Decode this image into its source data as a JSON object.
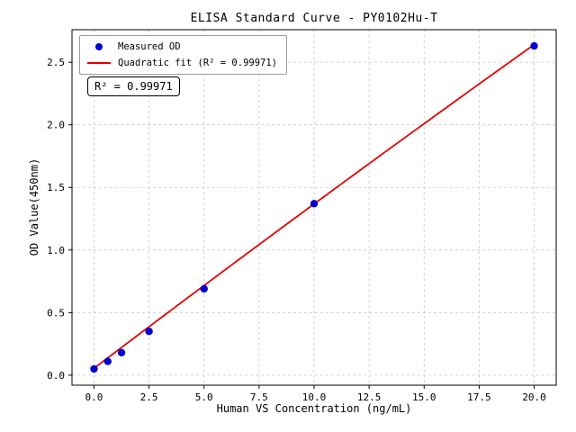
{
  "chart_data": {
    "type": "scatter",
    "title": "ELISA Standard Curve - PY0102Hu-T",
    "xlabel": "Human VS Concentration (ng/mL)",
    "ylabel": "OD Value(450nm)",
    "xlim": [
      -1,
      21
    ],
    "ylim": [
      -0.08,
      2.76
    ],
    "xticks": [
      0,
      2.5,
      5,
      7.5,
      10,
      12.5,
      15,
      17.5,
      20
    ],
    "yticks": [
      0,
      0.5,
      1,
      1.5,
      2,
      2.5
    ],
    "grid": true,
    "grid_style": "dashed",
    "legend_position": "upper-left",
    "annotation": "R² = 0.99971",
    "r_squared": 0.99971,
    "colors": {
      "scatter": "#0000cd",
      "fit_line": "#e50000",
      "grid": "#c9c9c9",
      "axis": "#000000"
    },
    "series": [
      {
        "name": "Measured OD",
        "type": "scatter",
        "color": "#0000cd",
        "x": [
          0,
          0.625,
          1.25,
          2.5,
          5,
          10,
          20
        ],
        "y": [
          0.05,
          0.11,
          0.18,
          0.35,
          0.69,
          1.37,
          2.63
        ]
      },
      {
        "name": "Quadratic fit (R² = 0.99971)",
        "type": "line",
        "color": "#e50000",
        "fit_coefficients": {
          "a": -0.0002,
          "b": 0.1333,
          "c": 0.055
        },
        "x_range": [
          0,
          20
        ]
      }
    ]
  }
}
